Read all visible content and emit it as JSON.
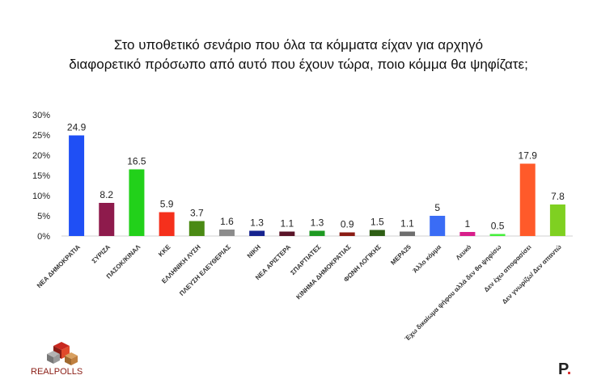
{
  "title_lines": [
    "Στο υποθετικό σενάριο που όλα τα κόμματα είχαν για αρχηγό",
    "διαφορετικό πρόσωπο από αυτό που έχουν τώρα, ποιο κόμμα θα ψηφίζατε;"
  ],
  "chart_data": {
    "type": "bar",
    "title": "Στο υποθετικό σενάριο που όλα τα κόμματα είχαν για αρχηγό διαφορετικό πρόσωπο από αυτό που έχουν τώρα, ποιο κόμμα θα ψηφίζατε;",
    "xlabel": "",
    "ylabel": "",
    "ylim": [
      0,
      30
    ],
    "yticks": [
      "0%",
      "5%",
      "10%",
      "15%",
      "20%",
      "25%",
      "30%"
    ],
    "categories": [
      "ΝΕΑ ΔΗΜΟΚΡΑΤΙΑ",
      "ΣΥΡΙΖΑ",
      "ΠΑΣΟΚ/ΚΙΝΑΛ",
      "ΚΚΕ",
      "ΕΛΛΗΝΙΚΗ ΛΥΣΗ",
      "ΠΛΕΥΣΗ ΕΛΕΥΘΕΡΙΑΣ",
      "ΝΙΚΗ",
      "ΝΕΑ ΑΡΙΣΤΕΡΑ",
      "ΣΠΑΡΤΙΑΤΕΣ",
      "ΚΙΝΗΜΑ ΔΗΜΟΚΡΑΤΙΑΣ",
      "ΦΩΝΗ ΛΟΓΙΚΗΣ",
      "ΜΕΡΑ25",
      "Άλλο κόμμα",
      "Λευκό",
      "Έχω δικαίωμα ψήφου αλλά δεν θα ψηφίσω",
      "Δεν έχω αποφασίσει",
      "Δεν γνωρίζω/ Δεν απαντώ"
    ],
    "values": [
      24.9,
      8.2,
      16.5,
      5.9,
      3.7,
      1.6,
      1.3,
      1.1,
      1.3,
      0.9,
      1.5,
      1.1,
      5,
      1,
      0.5,
      17.9,
      7.8
    ],
    "labels": [
      "24.9",
      "8.2",
      "16.5",
      "5.9",
      "3.7",
      "1.6",
      "1.3",
      "1.1",
      "1.3",
      "0.9",
      "1.5",
      "1.1",
      "5",
      "1",
      "0.5",
      "17.9",
      "7.8"
    ],
    "colors": [
      "#1f4ff5",
      "#8e1b4c",
      "#22d11a",
      "#f5301c",
      "#4a8a14",
      "#8c8c8c",
      "#16238f",
      "#5a1428",
      "#1e9a22",
      "#8a1c14",
      "#2e5e14",
      "#6e6e6e",
      "#3a6cf5",
      "#d81e8a",
      "#44ee3a",
      "#ff5a2a",
      "#7fd021"
    ],
    "grid": false,
    "legend": "none"
  },
  "logos": {
    "left_text": "REALPOLLS",
    "right_text": "P",
    "right_dot": "."
  }
}
